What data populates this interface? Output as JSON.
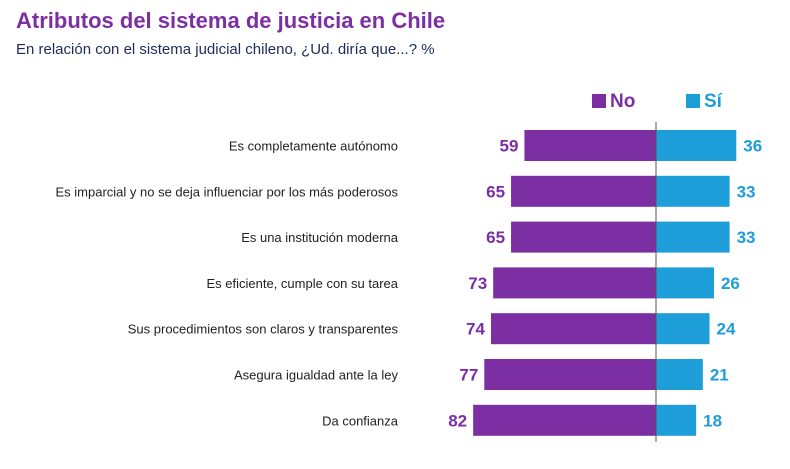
{
  "title": "Atributos del sistema de justicia en Chile",
  "subtitle": "En relación con el sistema judicial chileno, ¿Ud. diría que...? %",
  "colors": {
    "no": "#7B2FA3",
    "si": "#1E9ED9",
    "title": "#7B2FA3",
    "label_text": "#222222",
    "axis": "#555555"
  },
  "chart_data": {
    "type": "bar",
    "orientation": "diverging-horizontal",
    "categories": [
      "Es completamente autónomo",
      "Es imparcial y no se deja influenciar por los más poderosos",
      "Es una institución moderna",
      "Es eficiente, cumple con su tarea",
      "Sus procedimientos son claros y transparentes",
      "Asegura igualdad ante la ley",
      "Da confianza"
    ],
    "series": [
      {
        "name": "No",
        "values": [
          59,
          65,
          65,
          73,
          74,
          77,
          82
        ]
      },
      {
        "name": "Sí",
        "values": [
          36,
          33,
          33,
          26,
          24,
          21,
          18
        ]
      }
    ],
    "legend_position": "top-right",
    "grid": false
  }
}
